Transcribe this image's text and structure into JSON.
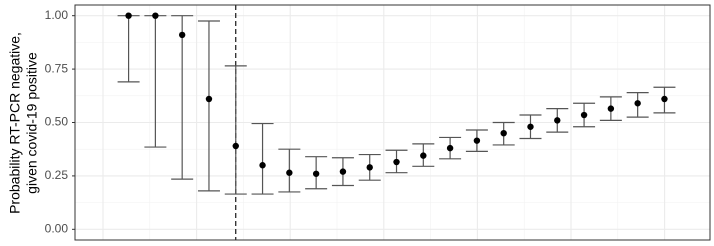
{
  "chart_data": {
    "type": "errorbar",
    "y_label": [
      "Probability RT-PCR negative,",
      "given covid-19 positive"
    ],
    "x": [
      1,
      2,
      3,
      4,
      5,
      6,
      7,
      8,
      9,
      10,
      11,
      12,
      13,
      14,
      15,
      16,
      17,
      18,
      19,
      20,
      21
    ],
    "xlim": [
      -1,
      22.7
    ],
    "vline": 5,
    "values": [
      1.0,
      1.0,
      0.91,
      0.61,
      0.39,
      0.3,
      0.265,
      0.26,
      0.27,
      0.29,
      0.315,
      0.345,
      0.38,
      0.415,
      0.45,
      0.48,
      0.51,
      0.535,
      0.565,
      0.59,
      0.61
    ],
    "lower": [
      0.69,
      0.385,
      0.235,
      0.18,
      0.165,
      0.165,
      0.175,
      0.19,
      0.205,
      0.23,
      0.265,
      0.295,
      0.33,
      0.365,
      0.395,
      0.425,
      0.455,
      0.48,
      0.51,
      0.525,
      0.545
    ],
    "upper": [
      1.0,
      1.0,
      1.0,
      0.975,
      0.765,
      0.495,
      0.375,
      0.34,
      0.335,
      0.35,
      0.37,
      0.4,
      0.43,
      0.465,
      0.5,
      0.535,
      0.565,
      0.59,
      0.62,
      0.64,
      0.665
    ],
    "color": "#000000",
    "ylim": [
      -0.05,
      1.05
    ],
    "yticks": [
      {
        "value": 0,
        "label": "0.00"
      },
      {
        "value": 0.25,
        "label": "0.25"
      },
      {
        "value": 0.5,
        "label": "0.50"
      },
      {
        "value": 0.75,
        "label": "0.75"
      },
      {
        "value": 1,
        "label": "1.00"
      }
    ],
    "grid": true
  }
}
